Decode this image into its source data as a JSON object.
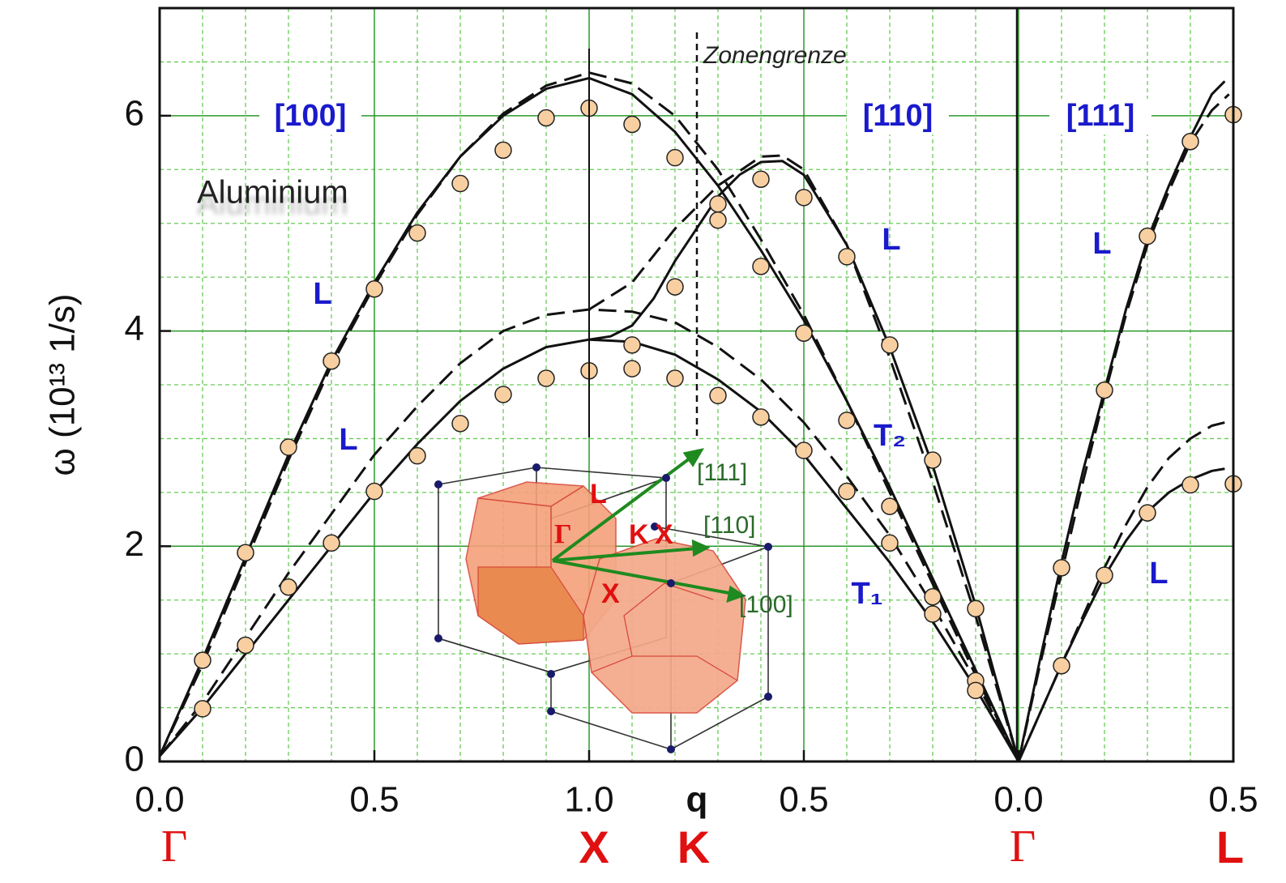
{
  "chart_data": {
    "type": "line",
    "xlabel": "q",
    "ylabel": "ω  (10¹³ 1/s)",
    "xlim": [
      0,
      2.5
    ],
    "ylim": [
      0,
      7
    ],
    "xticks": [
      {
        "value": 0,
        "label": "0.0"
      },
      0.5,
      {
        "value": 1,
        "label": "1.0"
      },
      {
        "value": 1.5,
        "label": "0.5"
      },
      {
        "value": 2,
        "label": "0.0"
      },
      {
        "value": 2.5,
        "label": "0.5"
      }
    ],
    "yticks": [
      0,
      2,
      4,
      6
    ],
    "grid": true,
    "symmetry_points": [
      "Γ",
      "X",
      "K",
      "Γ",
      "L"
    ],
    "annotations": [
      "Zonengrenze",
      "[100]",
      "[110]",
      "[111]",
      "Aluminium",
      "L",
      "L",
      "L",
      "L",
      "L",
      "T₂",
      "T₁"
    ],
    "inset_labels": [
      "[111]",
      "[110]",
      "[100]",
      "Γ",
      "L",
      "K",
      "X",
      "X"
    ],
    "series": [
      {
        "style": "markers",
        "color": "#f8cfa0",
        "x": [
          0.1,
          0.1,
          0.2,
          0.2,
          0.3,
          0.3,
          0.4,
          0.4,
          0.5,
          0.5,
          0.6,
          0.6,
          0.7,
          0.7,
          0.8,
          0.8,
          0.9,
          0.9,
          1.0,
          1.0,
          1.1,
          1.1,
          1.1,
          1.2,
          1.2,
          1.2,
          1.3,
          1.3,
          1.3,
          1.4,
          1.4,
          1.4,
          1.5,
          1.5,
          1.5,
          1.6,
          1.6,
          1.6,
          1.7,
          1.7,
          1.7,
          1.8,
          1.8,
          1.8,
          1.9,
          1.9,
          1.9,
          2.1,
          2.1,
          2.2,
          2.2,
          2.3,
          2.3,
          2.4,
          2.4,
          2.5,
          2.5
        ],
        "values": [
          0.49,
          0.94,
          1.08,
          1.94,
          1.62,
          2.92,
          3.72,
          2.03,
          4.39,
          2.51,
          4.91,
          2.84,
          5.37,
          3.14,
          5.68,
          3.41,
          5.98,
          3.56,
          6.07,
          3.63,
          5.92,
          3.87,
          3.65,
          5.61,
          4.41,
          3.56,
          5.18,
          5.03,
          3.4,
          5.41,
          4.6,
          3.2,
          5.24,
          3.98,
          2.89,
          4.69,
          3.17,
          2.51,
          3.87,
          2.37,
          2.03,
          2.8,
          1.53,
          1.37,
          1.42,
          0.75,
          0.66,
          1.8,
          0.89,
          3.45,
          1.73,
          4.88,
          2.31,
          5.76,
          2.57,
          6.01,
          2.58
        ]
      },
      {
        "style": "solid",
        "color": "#111111",
        "x": [
          0,
          0.1,
          0.2,
          0.3,
          0.4,
          0.5,
          0.6,
          0.7,
          0.8,
          0.9,
          1.0,
          1.1,
          1.2,
          1.3,
          1.4,
          1.5,
          1.6,
          1.7,
          1.8,
          1.9,
          2.0
        ],
        "values": [
          0.05,
          0.95,
          1.9,
          2.85,
          3.72,
          4.45,
          5.1,
          5.62,
          6.0,
          6.25,
          6.35,
          6.2,
          5.85,
          5.35,
          4.75,
          4.1,
          3.35,
          2.55,
          1.7,
          0.85,
          0
        ]
      },
      {
        "style": "solid",
        "color": "#111111",
        "x": [
          0,
          0.1,
          0.2,
          0.3,
          0.4,
          0.5,
          0.6,
          0.7,
          0.8,
          0.9,
          1.0,
          1.1,
          1.2,
          1.3,
          1.4,
          1.5,
          1.6,
          1.7,
          1.8,
          1.9,
          2.0
        ],
        "values": [
          0.05,
          0.5,
          1.0,
          1.5,
          2.0,
          2.5,
          2.95,
          3.35,
          3.65,
          3.85,
          3.92,
          3.9,
          3.78,
          3.55,
          3.25,
          2.85,
          2.35,
          1.85,
          1.3,
          0.68,
          0
        ]
      },
      {
        "style": "solid",
        "color": "#111111",
        "x": [
          1.0,
          1.05,
          1.1,
          1.15,
          1.2,
          1.25,
          1.3,
          1.35,
          1.4,
          1.45,
          1.5,
          1.6,
          1.7,
          1.8,
          1.9,
          2.0
        ],
        "values": [
          3.92,
          3.95,
          4.05,
          4.3,
          4.65,
          4.95,
          5.25,
          5.45,
          5.57,
          5.58,
          5.45,
          4.8,
          3.85,
          2.75,
          1.45,
          0
        ]
      },
      {
        "style": "dashed",
        "color": "#111111",
        "x": [
          0,
          0.1,
          0.2,
          0.3,
          0.4,
          0.5,
          0.6,
          0.7,
          0.8,
          0.9,
          1.0,
          1.1,
          1.2,
          1.3,
          1.4,
          1.5,
          1.6,
          1.7,
          1.8,
          1.9,
          2.0
        ],
        "values": [
          0.05,
          0.9,
          1.85,
          2.8,
          3.68,
          4.42,
          5.08,
          5.62,
          6.02,
          6.28,
          6.4,
          6.3,
          6.0,
          5.5,
          4.85,
          4.15,
          3.35,
          2.5,
          1.65,
          0.8,
          0
        ]
      },
      {
        "style": "dashed",
        "color": "#111111",
        "x": [
          0,
          0.1,
          0.2,
          0.3,
          0.4,
          0.5,
          0.6,
          0.7,
          0.8,
          0.9,
          1.0,
          1.1,
          1.2,
          1.3,
          1.4,
          1.5,
          1.6,
          1.7,
          1.8,
          1.9,
          2.0
        ],
        "values": [
          0.05,
          0.55,
          1.15,
          1.75,
          2.3,
          2.85,
          3.3,
          3.7,
          4.0,
          4.15,
          4.2,
          4.18,
          4.08,
          3.85,
          3.55,
          3.15,
          2.65,
          2.1,
          1.45,
          0.75,
          0
        ]
      },
      {
        "style": "dashed",
        "color": "#111111",
        "x": [
          1.0,
          1.1,
          1.2,
          1.3,
          1.4,
          1.45,
          1.5,
          1.6,
          1.7,
          1.8,
          1.9,
          2.0
        ],
        "values": [
          4.2,
          4.45,
          4.95,
          5.35,
          5.62,
          5.63,
          5.5,
          4.8,
          3.75,
          2.6,
          1.35,
          0
        ]
      },
      {
        "style": "solid",
        "color": "#111111",
        "x": [
          2.0,
          2.05,
          2.1,
          2.15,
          2.2,
          2.25,
          2.3,
          2.35,
          2.4,
          2.45,
          2.48
        ],
        "values": [
          0,
          0.95,
          1.85,
          2.7,
          3.45,
          4.2,
          4.85,
          5.35,
          5.8,
          6.2,
          6.32
        ]
      },
      {
        "style": "dashed",
        "color": "#111111",
        "x": [
          2.0,
          2.05,
          2.1,
          2.15,
          2.2,
          2.25,
          2.3,
          2.35,
          2.4,
          2.45,
          2.49
        ],
        "values": [
          0,
          0.9,
          1.75,
          2.6,
          3.4,
          4.15,
          4.8,
          5.3,
          5.75,
          6.05,
          6.2
        ]
      },
      {
        "style": "solid",
        "color": "#111111",
        "x": [
          2.0,
          2.05,
          2.1,
          2.15,
          2.2,
          2.25,
          2.3,
          2.35,
          2.4,
          2.45,
          2.48
        ],
        "values": [
          0,
          0.45,
          0.9,
          1.32,
          1.72,
          2.05,
          2.32,
          2.5,
          2.62,
          2.7,
          2.72
        ]
      },
      {
        "style": "dashed",
        "color": "#111111",
        "x": [
          2.0,
          2.05,
          2.1,
          2.15,
          2.2,
          2.25,
          2.3,
          2.35,
          2.4,
          2.45,
          2.48
        ],
        "values": [
          0,
          0.45,
          0.9,
          1.35,
          1.8,
          2.2,
          2.55,
          2.82,
          3.0,
          3.12,
          3.15
        ]
      }
    ]
  }
}
